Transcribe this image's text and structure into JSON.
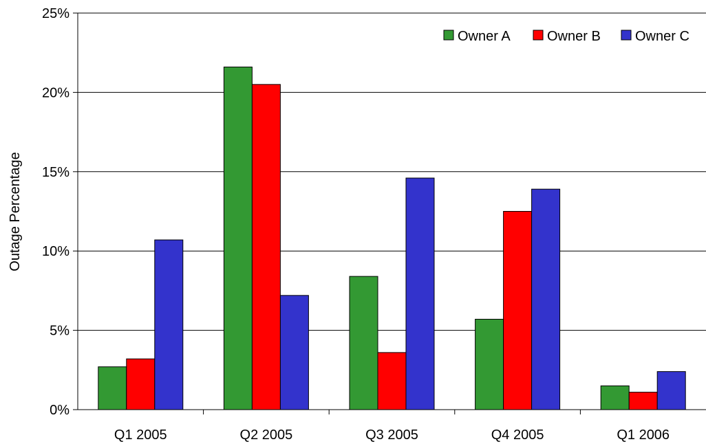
{
  "chart_data": {
    "type": "bar",
    "title": "",
    "xlabel": "",
    "ylabel": "Outage Percentage",
    "categories": [
      "Q1 2005",
      "Q2 2005",
      "Q3 2005",
      "Q4 2005",
      "Q1 2006"
    ],
    "series": [
      {
        "name": "Owner A",
        "color": "#339933",
        "values": [
          2.7,
          21.6,
          8.4,
          5.7,
          1.5
        ]
      },
      {
        "name": "Owner B",
        "color": "#ff0000",
        "values": [
          3.2,
          20.5,
          3.6,
          12.5,
          1.1
        ]
      },
      {
        "name": "Owner C",
        "color": "#3333cc",
        "values": [
          10.7,
          7.2,
          14.6,
          13.9,
          2.4
        ]
      }
    ],
    "ylim": [
      0,
      25
    ],
    "yticks": [
      0,
      5,
      10,
      15,
      20,
      25
    ],
    "ytick_labels": [
      "0%",
      "5%",
      "10%",
      "15%",
      "20%",
      "25%"
    ],
    "grid": true,
    "legend_position": "top-right"
  }
}
